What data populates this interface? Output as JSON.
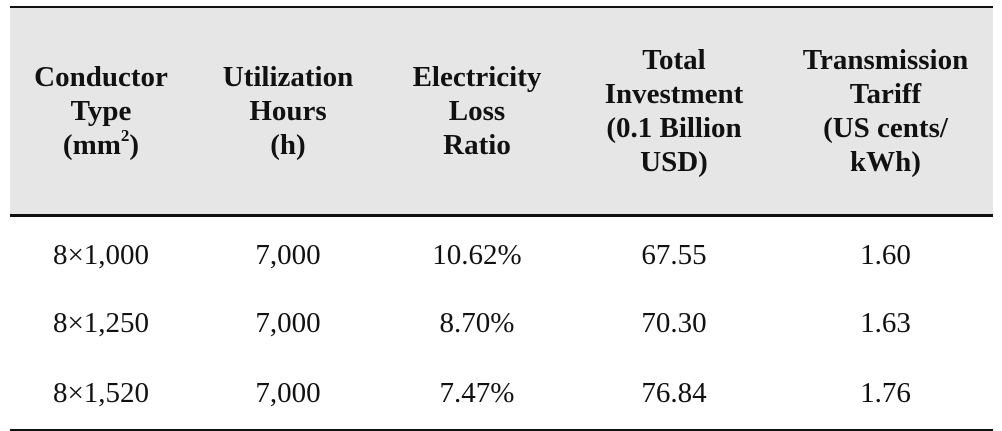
{
  "headers": [
    {
      "lines": [
        "Conductor",
        "Type"
      ],
      "unit_base": "(mm",
      "unit_sup": "2",
      "unit_end": ")"
    },
    {
      "lines": [
        "Utilization",
        "Hours",
        "(h)"
      ]
    },
    {
      "lines": [
        "Electricity",
        "Loss",
        "Ratio"
      ]
    },
    {
      "lines": [
        "Total",
        "Investment",
        "(0.1 Billion",
        "USD)"
      ]
    },
    {
      "lines": [
        "Transmission",
        "Tariff",
        "(US cents/",
        "kWh)"
      ]
    }
  ],
  "rows": [
    [
      "8×1,000",
      "7,000",
      "10.62%",
      "67.55",
      "1.60"
    ],
    [
      "8×1,250",
      "7,000",
      "8.70%",
      "70.30",
      "1.63"
    ],
    [
      "8×1,520",
      "7,000",
      "7.47%",
      "76.84",
      "1.76"
    ]
  ]
}
